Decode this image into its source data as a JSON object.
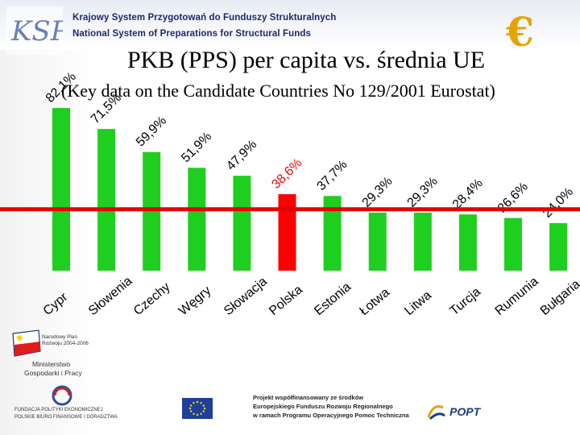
{
  "header": {
    "program_name_pl": "Krajowy System Przygotowań do Funduszy Strukturalnych",
    "program_name_en": "National System of Preparations for Structural Funds",
    "logo_text": "KSP",
    "euro_symbol": "€"
  },
  "chart_data": {
    "type": "bar",
    "title": "PKB (PPS) per capita vs. średnia UE",
    "subtitle": "(Key data on the Candidate Countries No 129/2001 Eurostat)",
    "categories": [
      "Cypr",
      "Słowenia",
      "Czechy",
      "Węgry",
      "Słowacja",
      "Polska",
      "Estonia",
      "Łotwa",
      "Litwa",
      "Turcja",
      "Rumunia",
      "Bułgaria"
    ],
    "values": [
      82.1,
      71.5,
      59.9,
      51.9,
      47.9,
      38.6,
      37.7,
      29.3,
      29.3,
      28.4,
      26.6,
      24.0
    ],
    "value_labels": [
      "82,1%",
      "71,5%",
      "59,9%",
      "51,9%",
      "47,9%",
      "38,6%",
      "37,7%",
      "29,3%",
      "29,3%",
      "28,4%",
      "26,6%",
      "24,0%"
    ],
    "ylim": [
      0,
      100
    ],
    "highlight_category": "Polska",
    "reference_line_value": 31,
    "colors": {
      "bar": "#1fcf1f",
      "highlight_bar": "#ff0000",
      "reference_line": "#e60000",
      "value_label_normal": "#000000",
      "value_label_highlight": "#ff0000"
    }
  },
  "footer": {
    "npr_line1": "Narodowy Plan",
    "npr_line2": "Rozwoju 2004-2006",
    "ministry_line1": "Ministerstwo",
    "ministry_line2": "Gospodarki i Pracy",
    "foundation_line1": "FUNDACJA POLITYKI EKONOMICZNEJ",
    "foundation_line2": "POLSKIE BIURO FINANSOWE I DORADZTWA",
    "cofinance_line1": "Projekt współfinansowany ze środków",
    "cofinance_line2": "Europejskiego Funduszu Rozwoju Regionalnego",
    "cofinance_line3": "w ramach Programu Operacyjnego Pomoc Techniczna",
    "popt_label": "POPT"
  }
}
